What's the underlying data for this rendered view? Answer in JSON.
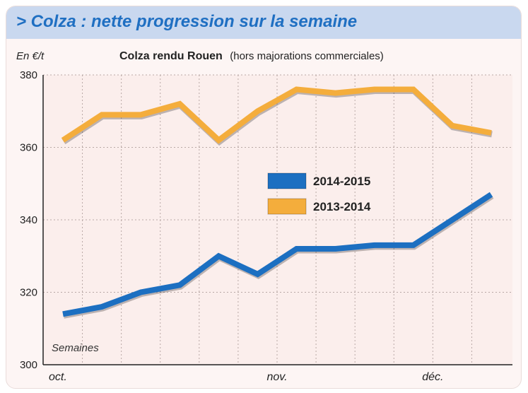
{
  "header": {
    "title": "> Colza : nette progression sur la semaine"
  },
  "chart_data": {
    "type": "line",
    "title": "Colza rendu Rouen",
    "subtitle": "(hors majorations commerciales)",
    "ylabel": "En €/t",
    "xlabel": "Semaines",
    "ylim": [
      300,
      380
    ],
    "y_ticks": [
      300,
      320,
      340,
      360,
      380
    ],
    "x_month_labels": [
      {
        "label": "oct.",
        "index": 0
      },
      {
        "label": "nov.",
        "index": 5.5
      },
      {
        "label": "déc.",
        "index": 9.5
      }
    ],
    "x_count": 12,
    "grid": true,
    "legend_position": "center",
    "series": [
      {
        "name": "2014-2015",
        "color": "#1c6fc1",
        "values": [
          314,
          316,
          320,
          322,
          330,
          325,
          332,
          332,
          333,
          333,
          340,
          347
        ]
      },
      {
        "name": "2013-2014",
        "color": "#f4ad3c",
        "values": [
          362,
          369,
          369,
          372,
          362,
          370,
          376,
          375,
          376,
          376,
          366,
          364
        ]
      }
    ]
  }
}
